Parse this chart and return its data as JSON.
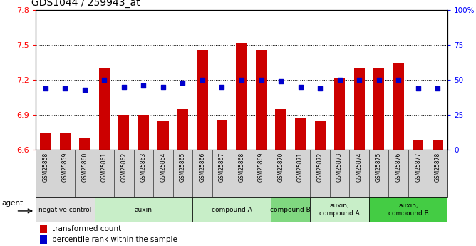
{
  "title": "GDS1044 / 259943_at",
  "samples": [
    "GSM25858",
    "GSM25859",
    "GSM25860",
    "GSM25861",
    "GSM25862",
    "GSM25863",
    "GSM25864",
    "GSM25865",
    "GSM25866",
    "GSM25867",
    "GSM25868",
    "GSM25869",
    "GSM25870",
    "GSM25871",
    "GSM25872",
    "GSM25873",
    "GSM25874",
    "GSM25875",
    "GSM25876",
    "GSM25877",
    "GSM25878"
  ],
  "bar_values": [
    6.75,
    6.75,
    6.7,
    7.3,
    6.9,
    6.9,
    6.85,
    6.95,
    7.46,
    6.86,
    7.52,
    7.46,
    6.95,
    6.88,
    6.85,
    7.22,
    7.3,
    7.3,
    7.35,
    6.68,
    6.68
  ],
  "percentile_values": [
    44,
    44,
    43,
    50,
    45,
    46,
    45,
    48,
    50,
    45,
    50,
    50,
    49,
    45,
    44,
    50,
    50,
    50,
    50,
    44,
    44
  ],
  "ylim_left": [
    6.6,
    7.8
  ],
  "ylim_right": [
    0,
    100
  ],
  "yticks_left": [
    6.6,
    6.9,
    7.2,
    7.5,
    7.8
  ],
  "yticks_right": [
    0,
    25,
    50,
    75,
    100
  ],
  "bar_color": "#cc0000",
  "dot_color": "#0000cc",
  "groups": [
    {
      "label": "negative control",
      "start": 0,
      "end": 3,
      "color": "#e0e0e0"
    },
    {
      "label": "auxin",
      "start": 3,
      "end": 8,
      "color": "#c8eec8"
    },
    {
      "label": "compound A",
      "start": 8,
      "end": 12,
      "color": "#c8eec8"
    },
    {
      "label": "compound B",
      "start": 12,
      "end": 14,
      "color": "#80d880"
    },
    {
      "label": "auxin,\ncompound A",
      "start": 14,
      "end": 17,
      "color": "#c8eec8"
    },
    {
      "label": "auxin,\ncompound B",
      "start": 17,
      "end": 21,
      "color": "#44cc44"
    }
  ],
  "legend_bar_label": "transformed count",
  "legend_dot_label": "percentile rank within the sample",
  "agent_label": "agent",
  "background_color": "#ffffff",
  "xtick_bg": "#d4d4d4"
}
